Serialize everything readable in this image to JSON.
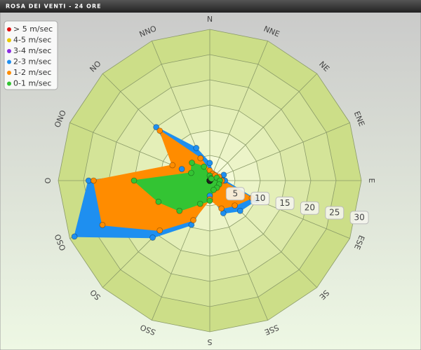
{
  "chart_data": {
    "type": "radar",
    "title": "ROSA DEI VENTI - 24 ORE",
    "categories": [
      "N",
      "NNE",
      "NE",
      "ENE",
      "E",
      "ESE",
      "SE",
      "SSE",
      "S",
      "SSO",
      "SO",
      "OSO",
      "O",
      "ONO",
      "NO",
      "NNO"
    ],
    "ylim": [
      0,
      30
    ],
    "yticks": [
      5,
      10,
      15,
      20,
      25,
      30
    ],
    "legend": "top-left",
    "series": [
      {
        "name": "> 5 m/sec",
        "color": "#e01010",
        "values": [
          0,
          0,
          0,
          0,
          0,
          0,
          0,
          0,
          0,
          0,
          0,
          0,
          0,
          0,
          0,
          0
        ]
      },
      {
        "name": "4-5 m/sec",
        "color": "#e8c800",
        "values": [
          0,
          0,
          0,
          0,
          0,
          0,
          0,
          0,
          0,
          0,
          0,
          0,
          0,
          0,
          0,
          0
        ]
      },
      {
        "name": "3-4 m/sec",
        "color": "#8a2be2",
        "values": [
          0,
          0,
          0,
          0,
          0,
          0,
          0,
          0,
          0,
          0,
          0,
          0,
          0,
          0,
          0,
          0
        ]
      },
      {
        "name": "2-3 m/sec",
        "color": "#1e8ff0",
        "values": [
          3.5,
          1.5,
          1.5,
          3,
          3,
          10,
          8.5,
          7,
          3,
          9.5,
          16,
          29,
          24,
          6,
          15,
          7
        ]
      },
      {
        "name": "1-2 m/sec",
        "color": "#ff8c00",
        "values": [
          2,
          1.5,
          1.5,
          2,
          2.4,
          9,
          7,
          6,
          3.7,
          8.5,
          14,
          23,
          23,
          8,
          14,
          4.8
        ]
      },
      {
        "name": "0-1 m/sec",
        "color": "#33c433",
        "values": [
          1,
          0.5,
          0.5,
          1.5,
          2,
          2,
          2,
          2,
          4,
          5,
          8.5,
          11,
          15,
          4,
          5,
          3
        ]
      }
    ]
  }
}
